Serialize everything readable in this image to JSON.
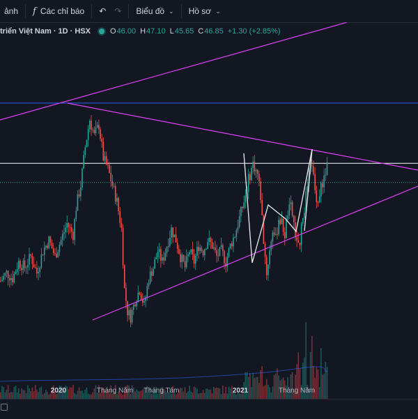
{
  "toolbar": {
    "items": [
      {
        "label": "ảnh",
        "icon": "",
        "chevron": false
      },
      {
        "label": "Các chỉ báo",
        "icon": "fx-icon",
        "chevron": false
      },
      {
        "label": "Biểu đồ",
        "icon": "",
        "chevron": true
      },
      {
        "label": "Hồ sơ",
        "icon": "",
        "chevron": true
      }
    ],
    "undo_icon": "undo-icon",
    "redo_icon": "redo-icon",
    "fx_glyph": "f",
    "undo_glyph": "↶",
    "redo_glyph": "↷",
    "chevron_glyph": "⌄"
  },
  "legend": {
    "symbol_title": "triển Việt Nam · 1D · HSX",
    "o_label": "O",
    "o_value": "46.00",
    "h_label": "H",
    "h_value": "47.10",
    "l_label": "L",
    "l_value": "45.65",
    "c_label": "C",
    "c_value": "46.85",
    "change": "+1.30 (+2.85%)",
    "status_color": "#26a69a"
  },
  "x_axis": [
    "2020",
    "Tháng Năm",
    "Tháng Tám",
    "2021",
    "Tháng Năm"
  ],
  "colors": {
    "background": "#131722",
    "up": "#26a69a",
    "down": "#ef5350",
    "trendline": "#e040fb",
    "horizontal_blue": "#2962ff",
    "horizontal_white": "#ffffff",
    "pattern": "#e0e0e0"
  },
  "chart_data": {
    "type": "candlestick",
    "last": {
      "open": 46.0,
      "high": 47.1,
      "low": 45.65,
      "close": 46.85,
      "change": 1.3,
      "change_pct": 2.85
    },
    "x_ticks": [
      "2020",
      "Tháng Năm",
      "Tháng Tám",
      "2021",
      "Tháng Năm"
    ],
    "price_path": [
      {
        "t": 0,
        "p": 25.5
      },
      {
        "t": 4,
        "p": 27
      },
      {
        "t": 8,
        "p": 26
      },
      {
        "t": 12,
        "p": 29
      },
      {
        "t": 16,
        "p": 28
      },
      {
        "t": 20,
        "p": 30
      },
      {
        "t": 24,
        "p": 27
      },
      {
        "t": 28,
        "p": 31
      },
      {
        "t": 32,
        "p": 33
      },
      {
        "t": 36,
        "p": 30
      },
      {
        "t": 40,
        "p": 33
      },
      {
        "t": 44,
        "p": 36
      },
      {
        "t": 48,
        "p": 34
      },
      {
        "t": 50,
        "p": 39
      },
      {
        "t": 53,
        "p": 43
      },
      {
        "t": 56,
        "p": 50
      },
      {
        "t": 59,
        "p": 55
      },
      {
        "t": 62,
        "p": 52
      },
      {
        "t": 65,
        "p": 54
      },
      {
        "t": 68,
        "p": 48
      },
      {
        "t": 71,
        "p": 46
      },
      {
        "t": 74,
        "p": 43
      },
      {
        "t": 77,
        "p": 40
      },
      {
        "t": 80,
        "p": 35
      },
      {
        "t": 82,
        "p": 24
      },
      {
        "t": 84,
        "p": 20
      },
      {
        "t": 86,
        "p": 19
      },
      {
        "t": 89,
        "p": 22
      },
      {
        "t": 92,
        "p": 24
      },
      {
        "t": 95,
        "p": 21
      },
      {
        "t": 98,
        "p": 26
      },
      {
        "t": 101,
        "p": 28
      },
      {
        "t": 104,
        "p": 31
      },
      {
        "t": 107,
        "p": 29
      },
      {
        "t": 110,
        "p": 32
      },
      {
        "t": 113,
        "p": 35
      },
      {
        "t": 116,
        "p": 33
      },
      {
        "t": 119,
        "p": 30
      },
      {
        "t": 122,
        "p": 28
      },
      {
        "t": 125,
        "p": 31
      },
      {
        "t": 128,
        "p": 29
      },
      {
        "t": 131,
        "p": 32
      },
      {
        "t": 134,
        "p": 31
      },
      {
        "t": 137,
        "p": 33
      },
      {
        "t": 140,
        "p": 32
      },
      {
        "t": 143,
        "p": 30
      },
      {
        "t": 146,
        "p": 31
      },
      {
        "t": 149,
        "p": 29
      },
      {
        "t": 152,
        "p": 32
      },
      {
        "t": 155,
        "p": 34
      },
      {
        "t": 158,
        "p": 37
      },
      {
        "t": 161,
        "p": 40
      },
      {
        "t": 164,
        "p": 44
      },
      {
        "t": 167,
        "p": 47
      },
      {
        "t": 170,
        "p": 45
      },
      {
        "t": 172,
        "p": 41
      },
      {
        "t": 174,
        "p": 33
      },
      {
        "t": 176,
        "p": 27
      },
      {
        "t": 178,
        "p": 31
      },
      {
        "t": 180,
        "p": 35
      },
      {
        "t": 182,
        "p": 33
      },
      {
        "t": 184,
        "p": 37
      },
      {
        "t": 186,
        "p": 36
      },
      {
        "t": 188,
        "p": 34
      },
      {
        "t": 190,
        "p": 38
      },
      {
        "t": 192,
        "p": 39
      },
      {
        "t": 194,
        "p": 36
      },
      {
        "t": 196,
        "p": 32
      },
      {
        "t": 198,
        "p": 33
      },
      {
        "t": 200,
        "p": 37
      },
      {
        "t": 202,
        "p": 41
      },
      {
        "t": 204,
        "p": 45
      },
      {
        "t": 206,
        "p": 47
      },
      {
        "t": 208,
        "p": 42
      },
      {
        "t": 210,
        "p": 40
      },
      {
        "t": 212,
        "p": 43
      },
      {
        "t": 214,
        "p": 44
      },
      {
        "t": 216,
        "p": 46.85
      }
    ],
    "horizontal_levels": [
      58,
      47
    ],
    "dotted_level": 43.5
  }
}
